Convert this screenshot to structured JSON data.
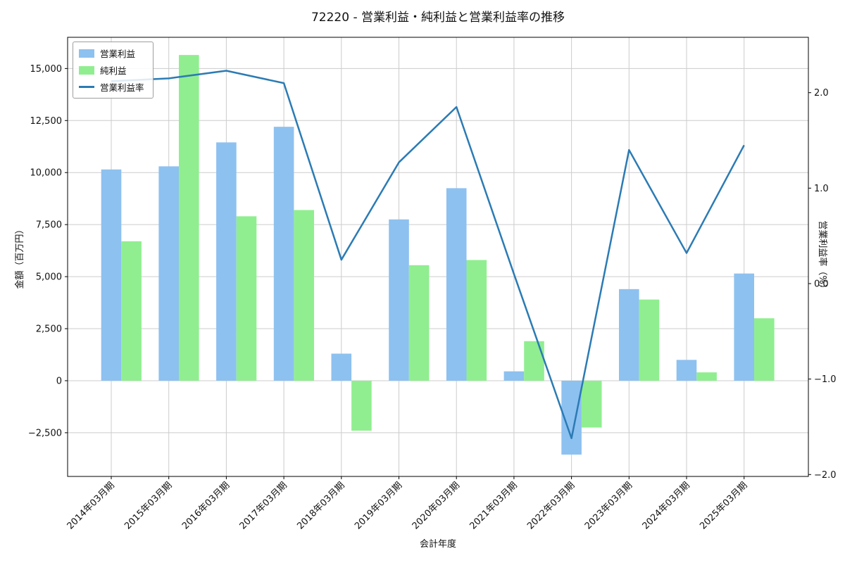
{
  "chart_data": {
    "type": "bar+line",
    "title": "72220 - 営業利益・純利益と営業利益率の推移",
    "xlabel": "会計年度",
    "ylabel_left": "金額（百万円）",
    "ylabel_right": "営業利益率（%）",
    "categories": [
      "2014年03月期",
      "2015年03月期",
      "2016年03月期",
      "2017年03月期",
      "2018年03月期",
      "2019年03月期",
      "2020年03月期",
      "2021年03月期",
      "2022年03月期",
      "2023年03月期",
      "2024年03月期",
      "2025年03月期"
    ],
    "series": [
      {
        "name": "営業利益",
        "type": "bar",
        "axis": "left",
        "color": "#8dc1f0",
        "values": [
          10150,
          10300,
          11450,
          12200,
          1300,
          7750,
          9250,
          450,
          -3550,
          4400,
          1000,
          5150
        ]
      },
      {
        "name": "純利益",
        "type": "bar",
        "axis": "left",
        "color": "#90ee90",
        "values": [
          6700,
          15650,
          7900,
          8200,
          -2400,
          5550,
          5800,
          1900,
          -2250,
          3900,
          400,
          3000
        ]
      },
      {
        "name": "営業利益率",
        "type": "line",
        "axis": "right",
        "color": "#2b7bb4",
        "values": [
          2.12,
          2.15,
          2.23,
          2.1,
          0.25,
          1.27,
          1.85,
          0.1,
          -1.62,
          1.4,
          0.32,
          1.45
        ]
      }
    ],
    "left_axis": {
      "ticks": [
        -2500,
        0,
        2500,
        5000,
        7500,
        10000,
        12500,
        15000
      ],
      "min": -4600,
      "max": 16500
    },
    "right_axis": {
      "ticks": [
        -2.0,
        -1.0,
        0.0,
        1.0,
        2.0
      ],
      "min": -2.02,
      "max": 2.58
    },
    "grid": true,
    "x_tick_rotation": 45,
    "legend_position": "upper-left",
    "colors": {
      "grid": "#cccccc",
      "spine": "#000000",
      "text": "#111111"
    }
  }
}
